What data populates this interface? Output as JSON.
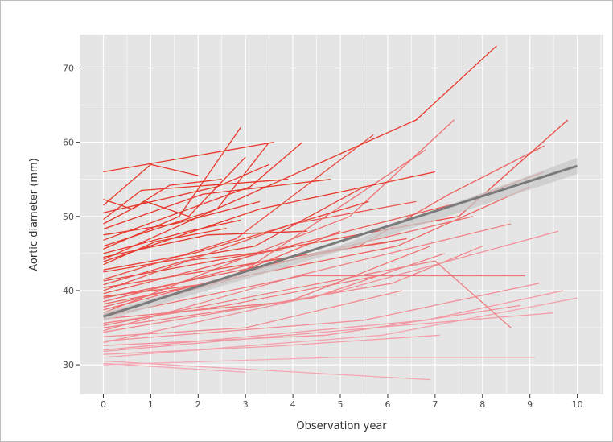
{
  "chart_data": {
    "type": "line",
    "title": "",
    "xlabel": "Observation year",
    "ylabel": "Aortic diameter (mm)",
    "xlim": [
      -0.5,
      10.55
    ],
    "ylim": [
      26,
      74.5
    ],
    "x_ticks": [
      0,
      1,
      2,
      3,
      4,
      5,
      6,
      7,
      8,
      9,
      10
    ],
    "y_ticks": [
      30,
      40,
      50,
      60,
      70
    ],
    "x_tick_labels": [
      "0",
      "1",
      "2",
      "3",
      "4",
      "5",
      "6",
      "7",
      "8",
      "9",
      "10"
    ],
    "y_tick_labels": [
      "30",
      "40",
      "50",
      "60",
      "70"
    ],
    "grid": true,
    "legend": "none",
    "colors": {
      "panel_background": "#e5e5e5",
      "grid": "#ffffff",
      "line_low": "#f4aab8",
      "line_high": "#e8372a",
      "trend_line": "#7a7a7a",
      "trend_band": "#c8c8c8"
    },
    "series": [
      {
        "x": [
          0,
          3.6
        ],
        "y": [
          56,
          60
        ]
      },
      {
        "x": [
          0,
          0.6,
          1.4,
          2.5
        ],
        "y": [
          52.3,
          51,
          54.2,
          55
        ]
      },
      {
        "x": [
          0,
          1.3,
          2.4,
          3.5
        ],
        "y": [
          50.5,
          52.4,
          54,
          57
        ]
      },
      {
        "x": [
          0,
          0.9,
          1.8,
          3.0
        ],
        "y": [
          49,
          52,
          50,
          58
        ]
      },
      {
        "x": [
          0,
          1.5,
          3.3
        ],
        "y": [
          47.5,
          49,
          52
        ]
      },
      {
        "x": [
          0,
          2.4,
          3.5
        ],
        "y": [
          46,
          51,
          60
        ]
      },
      {
        "x": [
          0,
          1.8,
          2.9
        ],
        "y": [
          45,
          48,
          49.5
        ]
      },
      {
        "x": [
          0,
          2.2,
          4.3
        ],
        "y": [
          44.5,
          47.5,
          48
        ]
      },
      {
        "x": [
          0,
          1.1,
          2.6
        ],
        "y": [
          43.5,
          46.6,
          48.4
        ]
      },
      {
        "x": [
          0,
          3.2,
          5.5
        ],
        "y": [
          42.5,
          46,
          54
        ]
      },
      {
        "x": [
          0,
          2.8,
          5.7
        ],
        "y": [
          41.5,
          47,
          61
        ]
      },
      {
        "x": [
          0,
          1.7,
          3.8
        ],
        "y": [
          40.8,
          44,
          45.5
        ]
      },
      {
        "x": [
          0,
          4.0,
          6.6
        ],
        "y": [
          40,
          49,
          52
        ]
      },
      {
        "x": [
          0,
          2.3,
          5.0
        ],
        "y": [
          39.2,
          41,
          48
        ]
      },
      {
        "x": [
          0,
          3.4,
          6.0
        ],
        "y": [
          38.5,
          44,
          46.5
        ]
      },
      {
        "x": [
          0,
          1.4,
          4.6
        ],
        "y": [
          37.8,
          40,
          44
        ]
      },
      {
        "x": [
          0,
          5.2,
          7.4
        ],
        "y": [
          37,
          50,
          63
        ]
      },
      {
        "x": [
          0,
          3.9,
          6.9
        ],
        "y": [
          36.2,
          38.5,
          46
        ]
      },
      {
        "x": [
          0,
          2.6,
          5.8
        ],
        "y": [
          35.6,
          38,
          42
        ]
      },
      {
        "x": [
          0,
          4.4,
          7.2
        ],
        "y": [
          35,
          39,
          45
        ]
      },
      {
        "x": [
          0,
          6.1,
          8.0
        ],
        "y": [
          34.4,
          41,
          46
        ]
      },
      {
        "x": [
          0,
          3.0,
          6.3
        ],
        "y": [
          33.8,
          35,
          40
        ]
      },
      {
        "x": [
          0,
          5.5,
          9.2
        ],
        "y": [
          33.2,
          36,
          41
        ]
      },
      {
        "x": [
          0,
          4.7,
          8.8
        ],
        "y": [
          32.6,
          34,
          38
        ]
      },
      {
        "x": [
          0,
          6.8,
          9.7
        ],
        "y": [
          32,
          36,
          40
        ]
      },
      {
        "x": [
          0,
          3.6,
          7.1
        ],
        "y": [
          31.4,
          32.5,
          34
        ]
      },
      {
        "x": [
          0,
          5.9,
          10.0
        ],
        "y": [
          31,
          34,
          39
        ]
      },
      {
        "x": [
          0,
          6.9
        ],
        "y": [
          30.5,
          28
        ]
      },
      {
        "x": [
          0,
          3.0
        ],
        "y": [
          30.2,
          29
        ]
      },
      {
        "x": [
          0,
          4.9,
          9.1
        ],
        "y": [
          30,
          31,
          31
        ]
      },
      {
        "x": [
          0,
          6.6,
          8.3
        ],
        "y": [
          44.2,
          63,
          73
        ]
      },
      {
        "x": [
          0,
          5.4,
          7.3,
          9.3
        ],
        "y": [
          39,
          46,
          53,
          59.5
        ]
      },
      {
        "x": [
          0,
          7.5,
          9.8
        ],
        "y": [
          41.3,
          50,
          63
        ]
      },
      {
        "x": [
          0,
          2.1,
          4.8
        ],
        "y": [
          48.3,
          53,
          55
        ]
      },
      {
        "x": [
          0,
          1.0,
          2.0
        ],
        "y": [
          51.5,
          57,
          55.5
        ]
      },
      {
        "x": [
          0,
          3.1,
          4.2
        ],
        "y": [
          46.8,
          54,
          60
        ]
      },
      {
        "x": [
          0,
          2.7,
          6.8
        ],
        "y": [
          36.8,
          41.5,
          59
        ]
      },
      {
        "x": [
          0,
          4.1,
          8.6
        ],
        "y": [
          34.6,
          42,
          49
        ]
      },
      {
        "x": [
          0,
          6.2,
          9.0
        ],
        "y": [
          38.2,
          46,
          54
        ]
      },
      {
        "x": [
          0,
          5.0,
          9.6
        ],
        "y": [
          33,
          40,
          48
        ]
      },
      {
        "x": [
          0,
          7.0,
          8.6
        ],
        "y": [
          35.3,
          44,
          35
        ]
      },
      {
        "x": [
          0,
          1.9,
          5.6
        ],
        "y": [
          42.8,
          45,
          52
        ]
      },
      {
        "x": [
          0,
          3.3,
          7.0
        ],
        "y": [
          43.9,
          51,
          56
        ]
      },
      {
        "x": [
          0,
          4.5,
          7.8
        ],
        "y": [
          37.4,
          45,
          50
        ]
      },
      {
        "x": [
          0,
          0.8,
          3.9
        ],
        "y": [
          49.6,
          53.5,
          55
        ]
      },
      {
        "x": [
          0,
          1.6,
          2.9
        ],
        "y": [
          45.6,
          50,
          62
        ]
      },
      {
        "x": [
          0,
          2.5,
          6.4
        ],
        "y": [
          40.4,
          43,
          47
        ]
      },
      {
        "x": [
          0,
          5.7,
          9.5
        ],
        "y": [
          31.8,
          35,
          37
        ]
      },
      {
        "x": [
          0,
          4.2,
          8.9
        ],
        "y": [
          36.5,
          42,
          42
        ]
      },
      {
        "x": [
          0,
          7.6,
          9.3
        ],
        "y": [
          39.6,
          52,
          56
        ]
      }
    ],
    "trend_line": {
      "x": [
        0,
        10
      ],
      "y": [
        36.5,
        56.8
      ]
    },
    "confidence_band": {
      "x": [
        0,
        5,
        10
      ],
      "lower": [
        35.9,
        45.3,
        55.7
      ],
      "upper": [
        37.1,
        46.1,
        57.9
      ]
    }
  }
}
